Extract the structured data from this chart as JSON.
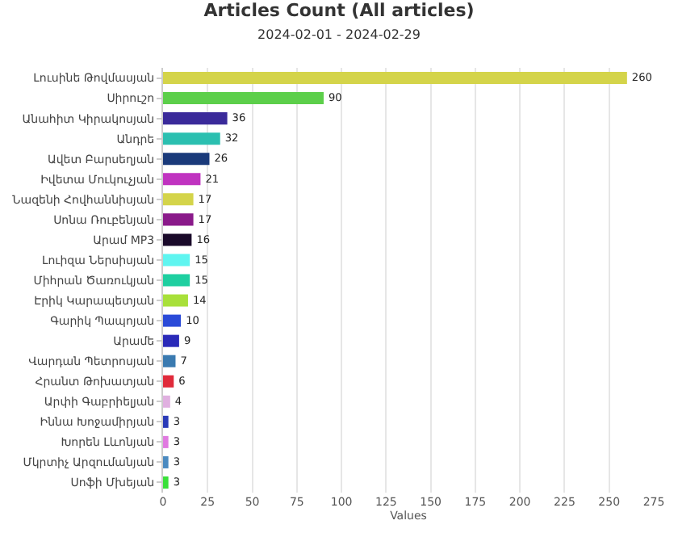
{
  "chart_data": {
    "type": "bar",
    "orientation": "horizontal",
    "title": "Articles Count (All articles)",
    "subtitle": "2024-02-01 - 2024-02-29",
    "xlabel": "Values",
    "categories": [
      "Լուսինե Թովմասյան",
      "Սիրուշո",
      "Անահիտ Կիրակոսյան",
      "Անդրե",
      "Ավետ Բարսեղյան",
      "Իվետա Մուկուչյան",
      "Նազենի Հովհաննիսյան",
      "Սոնա Ռուբենյան",
      "Արամ MP3",
      "Լուիզա Ներսիսյան",
      "Միհրան Ծառուկյան",
      "Էրիկ Կարապետյան",
      "Գարիկ Պապոյան",
      "Արամե",
      "Վարդան Պետրոսյան",
      "Հրանտ Թոխատյան",
      "Արփի Գաբրիելյան",
      "Իննա Խոջամիրյան",
      "Խորեն Լևոնյան",
      "Մկրտիչ Արզումանյան",
      "Սոֆի Մխեյան"
    ],
    "values": [
      260,
      90,
      36,
      32,
      26,
      21,
      17,
      17,
      16,
      15,
      15,
      14,
      10,
      9,
      7,
      6,
      4,
      3,
      3,
      3,
      3
    ],
    "colors": [
      "#d4d44a",
      "#5ccf4a",
      "#3a2a9a",
      "#2bbfb0",
      "#1a3a7a",
      "#c033c0",
      "#d4d44a",
      "#8a1a8a",
      "#1a0a2a",
      "#5ff5f0",
      "#1ecfa0",
      "#a8e03a",
      "#2a4ad8",
      "#2a2ab8",
      "#3a7ab0",
      "#e02a3a",
      "#e0b0e0",
      "#2a3ab8",
      "#e07ae0",
      "#4a8ac0",
      "#3ae03a"
    ],
    "xlim": [
      0,
      275
    ],
    "xticks": [
      0,
      25,
      50,
      75,
      100,
      125,
      150,
      175,
      200,
      225,
      250,
      275
    ],
    "data_labels": true,
    "grid": "x"
  }
}
